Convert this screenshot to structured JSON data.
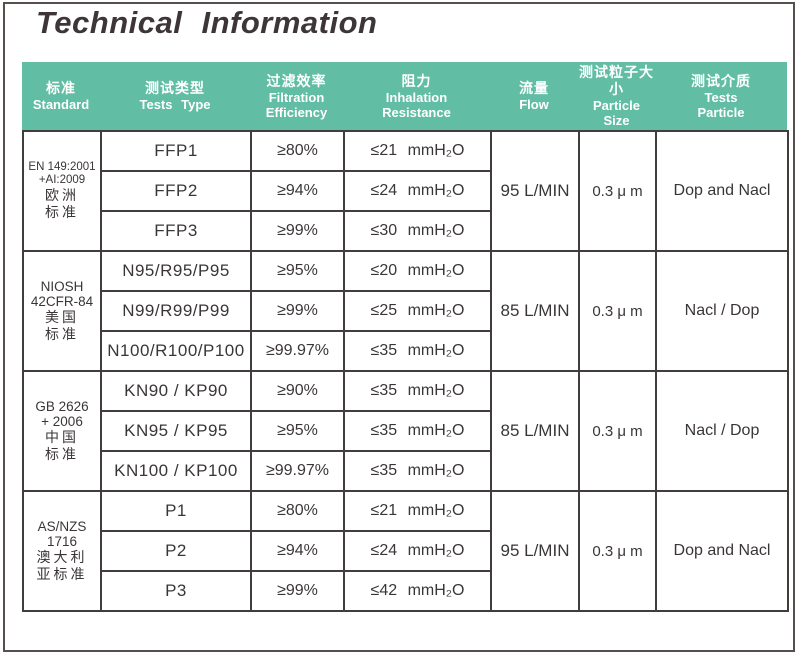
{
  "title": "Technical Information",
  "header": {
    "columns": [
      {
        "lines": [
          "标准",
          "Standard"
        ]
      },
      {
        "lines": [
          "测试类型",
          "Tests Type"
        ]
      },
      {
        "lines": [
          "过滤效率",
          "Filtration",
          "Efficiency"
        ]
      },
      {
        "lines": [
          "阻力",
          "Inhalation",
          "Resistance"
        ]
      },
      {
        "lines": [
          "流量",
          "Flow"
        ]
      },
      {
        "lines": [
          "测试粒子大小",
          "Particle",
          "Size"
        ]
      },
      {
        "lines": [
          "测试介质",
          "Tests",
          "Particle"
        ]
      }
    ]
  },
  "table": {
    "sections": [
      {
        "standard_lines": [
          "EN 149:2001",
          "+AI:2009",
          "欧洲",
          "标准"
        ],
        "rows": [
          {
            "test": "FFP1",
            "efficiency": "≥80%",
            "resistance": "≤21 mmH₂O"
          },
          {
            "test": "FFP2",
            "efficiency": "≥94%",
            "resistance": "≤24 mmH₂O"
          },
          {
            "test": "FFP3",
            "efficiency": "≥99%",
            "resistance": "≤30 mmH₂O"
          }
        ],
        "flow": "95 L/MIN",
        "particle_size": "0.3 μ m",
        "test_media": "Dop and Nacl"
      },
      {
        "standard_lines": [
          "NIOSH",
          "42CFR-84",
          "美国",
          "标准"
        ],
        "rows": [
          {
            "test": "N95/R95/P95",
            "efficiency": "≥95%",
            "resistance": "≤20 mmH₂O"
          },
          {
            "test": "N99/R99/P99",
            "efficiency": "≥99%",
            "resistance": "≤25 mmH₂O"
          },
          {
            "test": "N100/R100/P100",
            "efficiency": "≥99.97%",
            "resistance": "≤35 mmH₂O"
          }
        ],
        "flow": "85 L/MIN",
        "particle_size": "0.3 μ m",
        "test_media": "Nacl / Dop"
      },
      {
        "standard_lines": [
          "GB 2626",
          "+ 2006",
          "中国",
          "标准"
        ],
        "rows": [
          {
            "test": "KN90 / KP90",
            "efficiency": "≥90%",
            "resistance": "≤35 mmH₂O"
          },
          {
            "test": "KN95 / KP95",
            "efficiency": "≥95%",
            "resistance": "≤35 mmH₂O"
          },
          {
            "test": "KN100 / KP100",
            "efficiency": "≥99.97%",
            "resistance": "≤35 mmH₂O"
          }
        ],
        "flow": "85 L/MIN",
        "particle_size": "0.3 μ m",
        "test_media": "Nacl / Dop"
      },
      {
        "standard_lines": [
          "AS/NZS",
          "1716",
          "澳大利",
          "亚标准"
        ],
        "rows": [
          {
            "test": "P1",
            "efficiency": "≥80%",
            "resistance": "≤21 mmH₂O"
          },
          {
            "test": "P2",
            "efficiency": "≥94%",
            "resistance": "≤24 mmH₂O"
          },
          {
            "test": "P3",
            "efficiency": "≥99%",
            "resistance": "≤42 mmH₂O"
          }
        ],
        "flow": "95 L/MIN",
        "particle_size": "0.3 μ m",
        "test_media": "Dop and Nacl"
      }
    ]
  }
}
